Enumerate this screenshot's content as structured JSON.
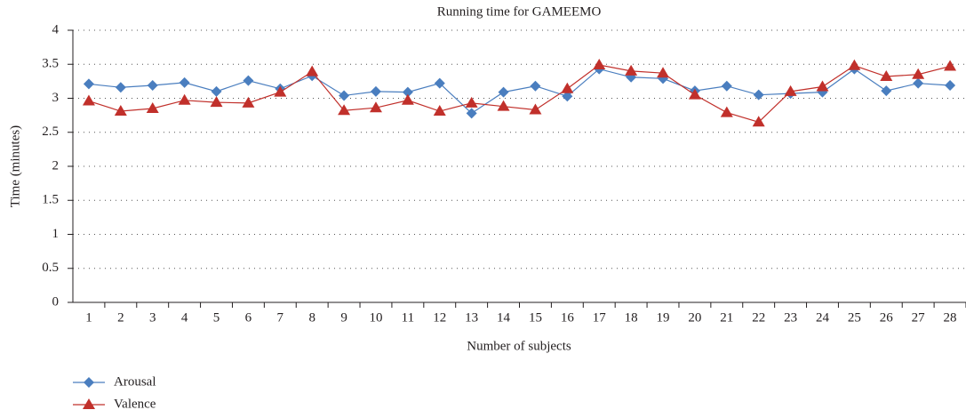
{
  "chart_data": {
    "type": "line",
    "title": "Running time for GAMEEMO",
    "x_label": "Number of subjects",
    "y_label": "Time (minutes)",
    "categories": [
      "1",
      "2",
      "3",
      "4",
      "5",
      "6",
      "7",
      "8",
      "9",
      "10",
      "11",
      "12",
      "13",
      "14",
      "15",
      "16",
      "17",
      "18",
      "19",
      "20",
      "21",
      "22",
      "23",
      "24",
      "25",
      "26",
      "27",
      "28"
    ],
    "series": [
      {
        "name": "Arousal",
        "color": "#4a7ebf",
        "marker": "diamond",
        "values": [
          3.21,
          3.16,
          3.19,
          3.23,
          3.1,
          3.26,
          3.14,
          3.33,
          3.04,
          3.1,
          3.09,
          3.22,
          2.78,
          3.09,
          3.18,
          3.03,
          3.43,
          3.31,
          3.29,
          3.11,
          3.18,
          3.05,
          3.07,
          3.09,
          3.43,
          3.11,
          3.22,
          3.19
        ]
      },
      {
        "name": "Valence",
        "color": "#c1302b",
        "marker": "triangle",
        "values": [
          2.96,
          2.81,
          2.85,
          2.97,
          2.94,
          2.93,
          3.09,
          3.39,
          2.82,
          2.86,
          2.97,
          2.81,
          2.93,
          2.88,
          2.83,
          3.14,
          3.49,
          3.4,
          3.37,
          3.05,
          2.79,
          2.65,
          3.1,
          3.17,
          3.48,
          3.32,
          3.35,
          3.47
        ]
      }
    ],
    "ylim": [
      0,
      4
    ],
    "yticks": [
      0,
      0.5,
      1,
      1.5,
      2,
      2.5,
      3,
      3.5,
      4
    ],
    "grid": true,
    "legend": "bottom-left"
  }
}
